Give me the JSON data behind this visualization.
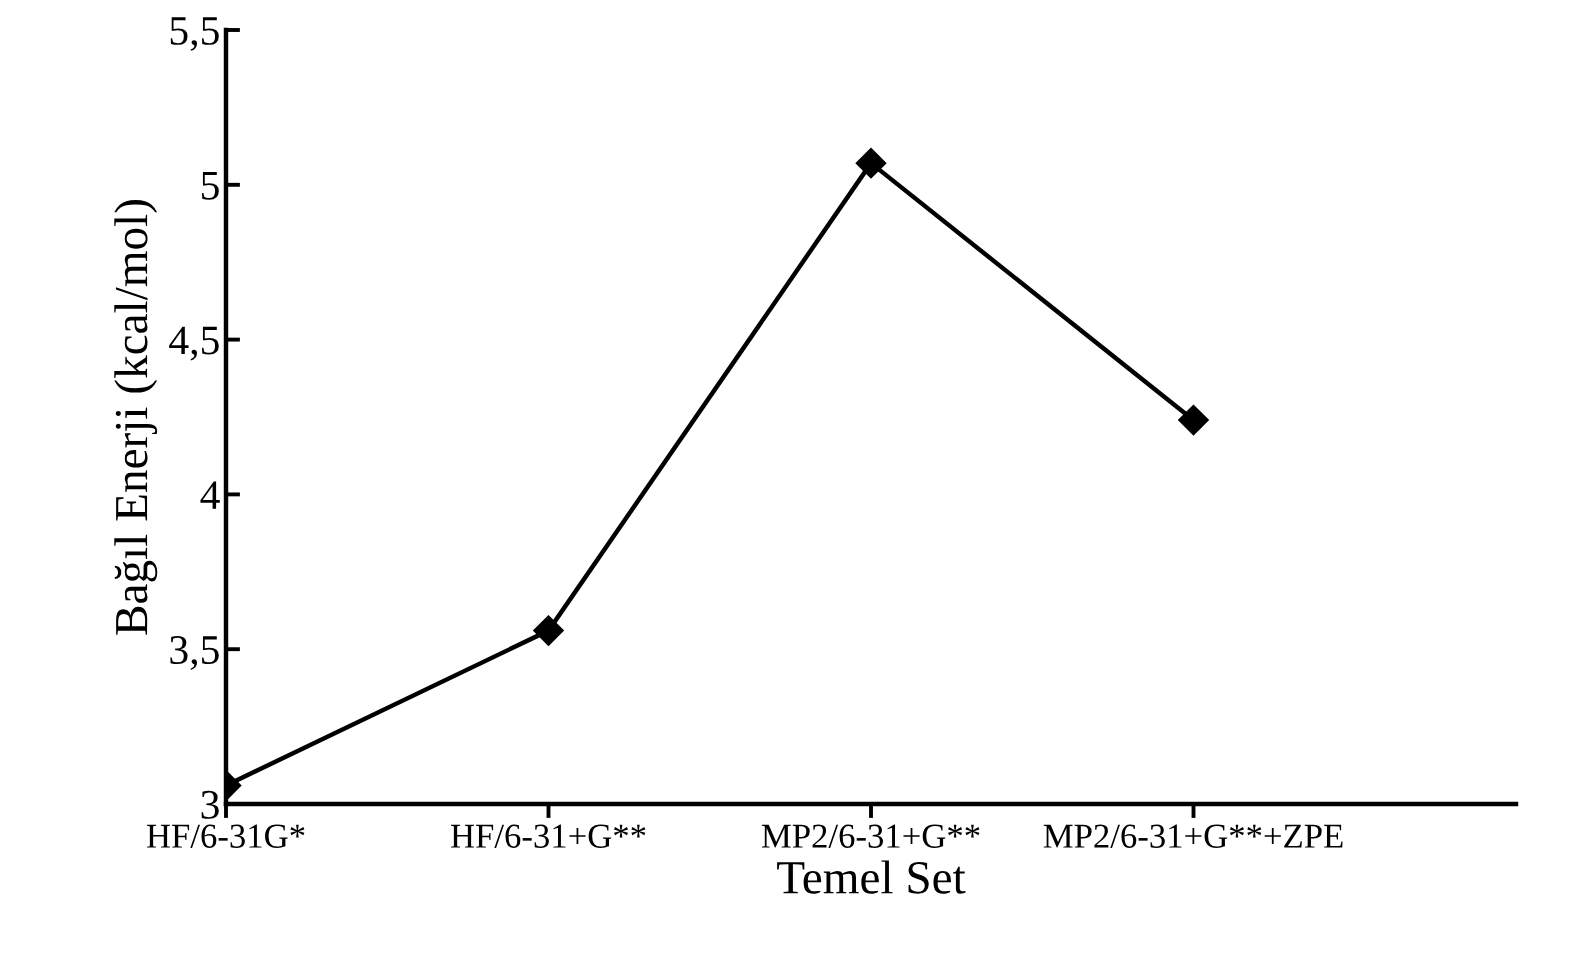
{
  "chart_data": {
    "type": "line",
    "categories": [
      "HF/6-31G*",
      "HF/6-31+G**",
      "MP2/6-31+G**",
      "MP2/6-31+G**+ZPE"
    ],
    "values": [
      3.06,
      3.56,
      5.07,
      4.24
    ],
    "color": "#000000",
    "marker": "diamond",
    "line_style": "solid",
    "xlabel": "Temel Set",
    "ylabel": "Bağıl Enerji (kcal/mol)",
    "ylim": [
      3,
      5.5
    ],
    "yticks": [
      {
        "value": 3,
        "label": "3"
      },
      {
        "value": 3.5,
        "label": "3,5"
      },
      {
        "value": 4,
        "label": "4"
      },
      {
        "value": 4.5,
        "label": "4,5"
      },
      {
        "value": 5,
        "label": "5"
      },
      {
        "value": 5.5,
        "label": "5,5"
      }
    ],
    "grid": false,
    "legend": false
  }
}
